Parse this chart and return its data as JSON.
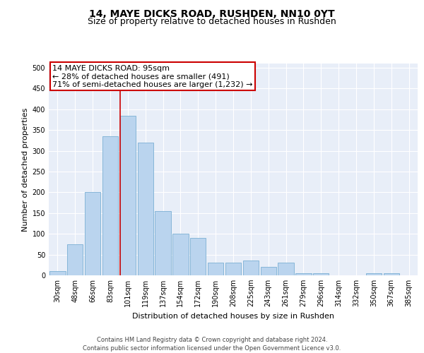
{
  "title1": "14, MAYE DICKS ROAD, RUSHDEN, NN10 0YT",
  "title2": "Size of property relative to detached houses in Rushden",
  "xlabel": "Distribution of detached houses by size in Rushden",
  "ylabel": "Number of detached properties",
  "bar_labels": [
    "30sqm",
    "48sqm",
    "66sqm",
    "83sqm",
    "101sqm",
    "119sqm",
    "137sqm",
    "154sqm",
    "172sqm",
    "190sqm",
    "208sqm",
    "225sqm",
    "243sqm",
    "261sqm",
    "279sqm",
    "296sqm",
    "314sqm",
    "332sqm",
    "350sqm",
    "367sqm",
    "385sqm"
  ],
  "bar_values": [
    10,
    75,
    200,
    335,
    385,
    320,
    155,
    100,
    90,
    30,
    30,
    35,
    20,
    30,
    5,
    5,
    0,
    0,
    5,
    5,
    0
  ],
  "bar_color": "#bad4ee",
  "bar_edge_color": "#7aafd4",
  "background_color": "#e8eef8",
  "grid_color": "#ffffff",
  "vline_color": "#cc0000",
  "vline_x_index": 4,
  "annotation_text": "14 MAYE DICKS ROAD: 95sqm\n← 28% of detached houses are smaller (491)\n71% of semi-detached houses are larger (1,232) →",
  "annotation_box_facecolor": "#ffffff",
  "annotation_box_edgecolor": "#cc0000",
  "footer": "Contains HM Land Registry data © Crown copyright and database right 2024.\nContains public sector information licensed under the Open Government Licence v3.0.",
  "ylim": [
    0,
    510
  ],
  "yticks": [
    0,
    50,
    100,
    150,
    200,
    250,
    300,
    350,
    400,
    450,
    500
  ],
  "title1_fontsize": 10,
  "title2_fontsize": 9,
  "xlabel_fontsize": 8,
  "ylabel_fontsize": 8,
  "tick_fontsize": 7,
  "footer_fontsize": 6,
  "ann_fontsize": 8
}
